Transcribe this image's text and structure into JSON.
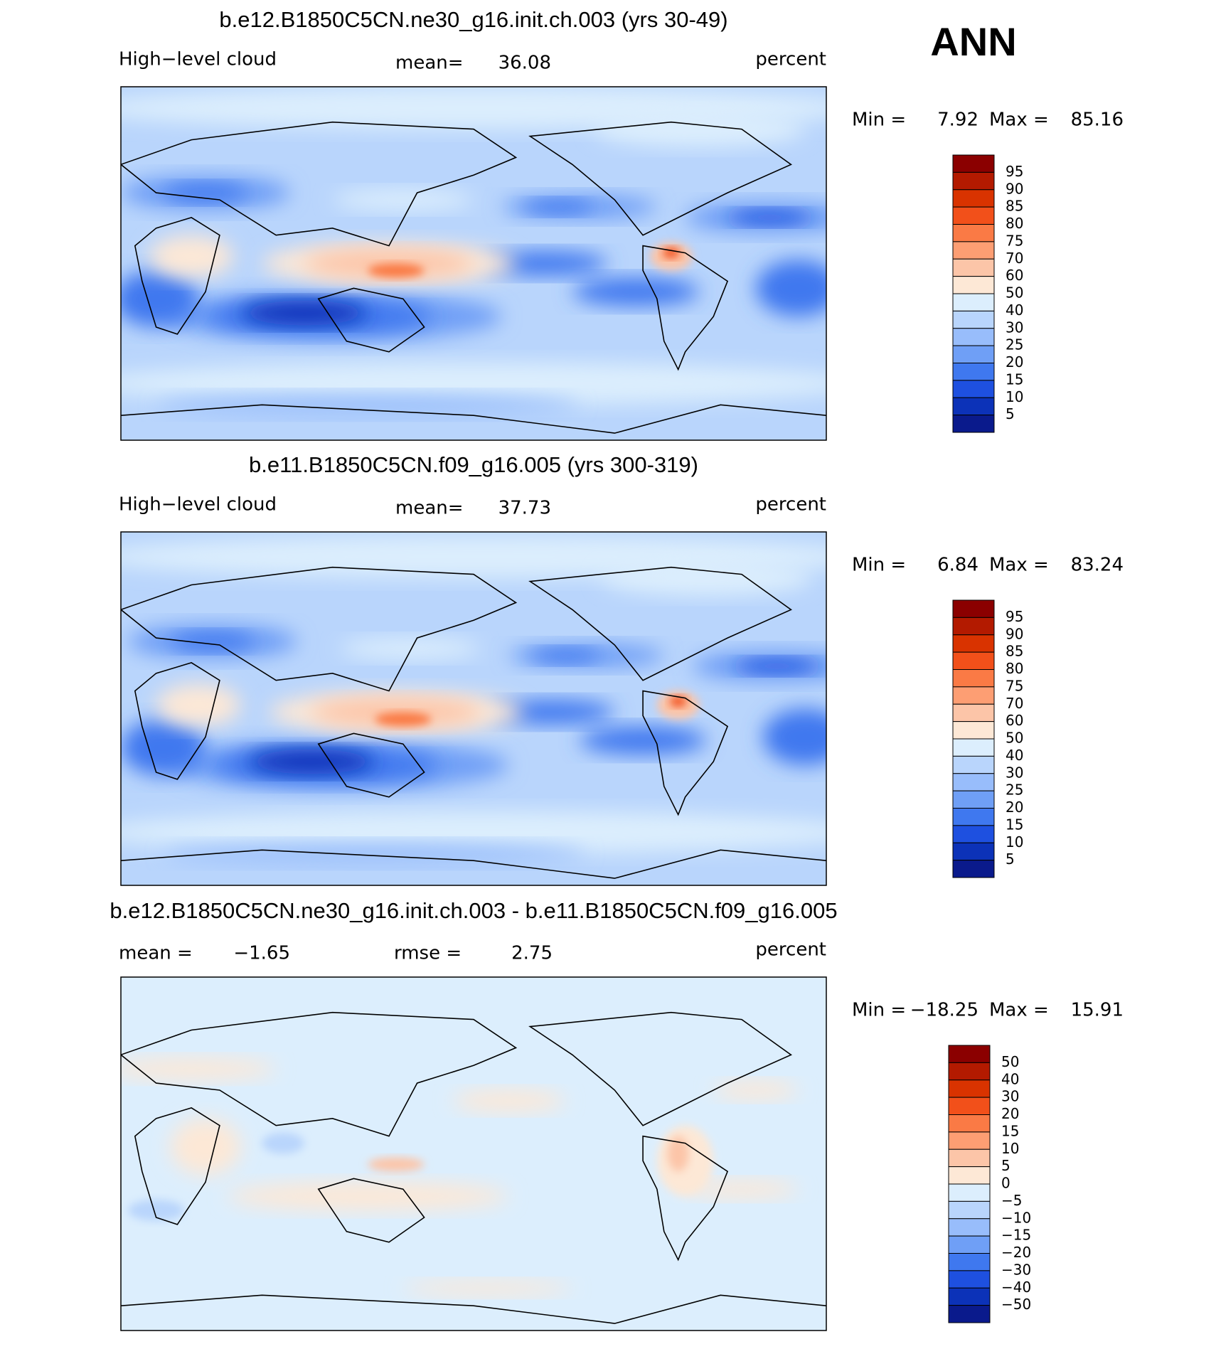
{
  "season": "ANN",
  "colormap": [
    "#8b0000",
    "#b31a00",
    "#d93300",
    "#f2501a",
    "#fa7a45",
    "#fd9e73",
    "#fcc5a8",
    "#fde8d6",
    "#dceefd",
    "#b9d5fc",
    "#98bdfb",
    "#6f9ff6",
    "#3f78ef",
    "#1e50e0",
    "#0c32b8",
    "#0a1a8c"
  ],
  "panels": [
    {
      "title": "b.e12.B1850C5CN.ne30_g16.init.ch.003 (yrs 30-49)",
      "variable": "High−level cloud",
      "stat1_label": "mean=",
      "stat1_value": 36.08,
      "units": "percent",
      "min_label": "Min =",
      "min_value": 7.92,
      "max_label": "Max =",
      "max_value": 85.16,
      "levels": [
        95,
        90,
        85,
        80,
        75,
        70,
        60,
        50,
        40,
        30,
        25,
        20,
        15,
        10,
        5
      ]
    },
    {
      "title": "b.e11.B1850C5CN.f09_g16.005 (yrs 300-319)",
      "variable": "High−level cloud",
      "stat1_label": "mean=",
      "stat1_value": 37.73,
      "units": "percent",
      "min_label": "Min =",
      "min_value": 6.84,
      "max_label": "Max =",
      "max_value": 83.24,
      "levels": [
        95,
        90,
        85,
        80,
        75,
        70,
        60,
        50,
        40,
        30,
        25,
        20,
        15,
        10,
        5
      ]
    },
    {
      "title": "b.e12.B1850C5CN.ne30_g16.init.ch.003 - b.e11.B1850C5CN.f09_g16.005",
      "stat1_label": "mean =",
      "stat1_value": {
        "value": -1.65,
        "label": "−1.65"
      },
      "stat2_label": "rmse =",
      "stat2_value": 2.75,
      "units": "percent",
      "min_label": "Min =",
      "min_value": {
        "value": -18.25,
        "label": "−18.25"
      },
      "max_label": "Max =",
      "max_value": 15.91,
      "levels": [
        50,
        40,
        30,
        20,
        15,
        10,
        5,
        0,
        {
          "value": -5,
          "label": "−5"
        },
        {
          "value": -10,
          "label": "−10"
        },
        {
          "value": -15,
          "label": "−15"
        },
        {
          "value": -20,
          "label": "−20"
        },
        {
          "value": -30,
          "label": "−30"
        },
        {
          "value": -40,
          "label": "−40"
        },
        {
          "value": -50,
          "label": "−50"
        }
      ]
    }
  ]
}
